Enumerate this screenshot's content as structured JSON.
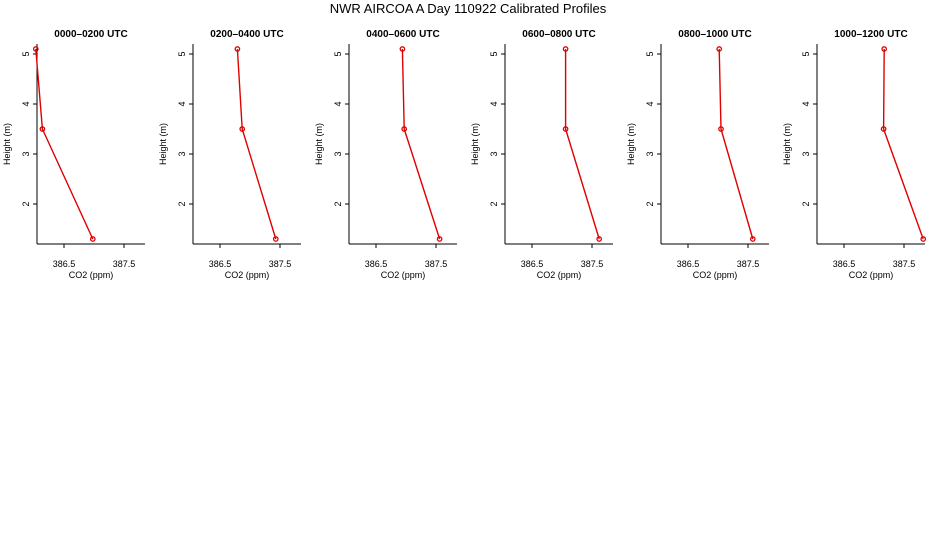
{
  "title": "NWR AIRCOA A  Day 110922  Calibrated Profiles",
  "colors": {
    "line": "#e00000",
    "axis": "#000000",
    "background": "#ffffff"
  },
  "chart_data": [
    {
      "type": "line",
      "title": "0000–0200 UTC",
      "xlabel": "CO2 (ppm)",
      "ylabel": "Height (m)",
      "xlim": [
        386.05,
        387.85
      ],
      "ylim": [
        1.2,
        5.2
      ],
      "xticks": [
        "386.5",
        "387.5"
      ],
      "yticks": [
        "2",
        "3",
        "4",
        "5"
      ],
      "series": [
        {
          "x": [
            386.98,
            386.14,
            386.03
          ],
          "y": [
            1.3,
            3.5,
            5.1
          ]
        }
      ]
    },
    {
      "type": "line",
      "title": "0200–0400 UTC",
      "xlabel": "CO2 (ppm)",
      "ylabel": "Height (m)",
      "xlim": [
        386.05,
        387.85
      ],
      "ylim": [
        1.2,
        5.2
      ],
      "xticks": [
        "386.5",
        "387.5"
      ],
      "yticks": [
        "2",
        "3",
        "4",
        "5"
      ],
      "series": [
        {
          "x": [
            387.43,
            386.87,
            386.79
          ],
          "y": [
            1.3,
            3.5,
            5.1
          ]
        }
      ]
    },
    {
      "type": "line",
      "title": "0400–0600 UTC",
      "xlabel": "CO2 (ppm)",
      "ylabel": "Height (m)",
      "xlim": [
        386.05,
        387.85
      ],
      "ylim": [
        1.2,
        5.2
      ],
      "xticks": [
        "386.5",
        "387.5"
      ],
      "yticks": [
        "2",
        "3",
        "4",
        "5"
      ],
      "series": [
        {
          "x": [
            387.56,
            386.97,
            386.94
          ],
          "y": [
            1.3,
            3.5,
            5.1
          ]
        }
      ]
    },
    {
      "type": "line",
      "title": "0600–0800 UTC",
      "xlabel": "CO2 (ppm)",
      "ylabel": "Height (m)",
      "xlim": [
        386.05,
        387.85
      ],
      "ylim": [
        1.2,
        5.2
      ],
      "xticks": [
        "386.5",
        "387.5"
      ],
      "yticks": [
        "2",
        "3",
        "4",
        "5"
      ],
      "series": [
        {
          "x": [
            387.62,
            387.06,
            387.06
          ],
          "y": [
            1.3,
            3.5,
            5.1
          ]
        }
      ]
    },
    {
      "type": "line",
      "title": "0800–1000 UTC",
      "xlabel": "CO2 (ppm)",
      "ylabel": "Height (m)",
      "xlim": [
        386.05,
        387.85
      ],
      "ylim": [
        1.2,
        5.2
      ],
      "xticks": [
        "386.5",
        "387.5"
      ],
      "yticks": [
        "2",
        "3",
        "4",
        "5"
      ],
      "series": [
        {
          "x": [
            387.58,
            387.05,
            387.02
          ],
          "y": [
            1.3,
            3.5,
            5.1
          ]
        }
      ]
    },
    {
      "type": "line",
      "title": "1000–1200 UTC",
      "xlabel": "CO2 (ppm)",
      "ylabel": "Height (m)",
      "xlim": [
        386.05,
        387.85
      ],
      "ylim": [
        1.2,
        5.2
      ],
      "xticks": [
        "386.5",
        "387.5"
      ],
      "yticks": [
        "2",
        "3",
        "4",
        "5"
      ],
      "series": [
        {
          "x": [
            387.82,
            387.16,
            387.17
          ],
          "y": [
            1.3,
            3.5,
            5.1
          ]
        }
      ]
    }
  ]
}
